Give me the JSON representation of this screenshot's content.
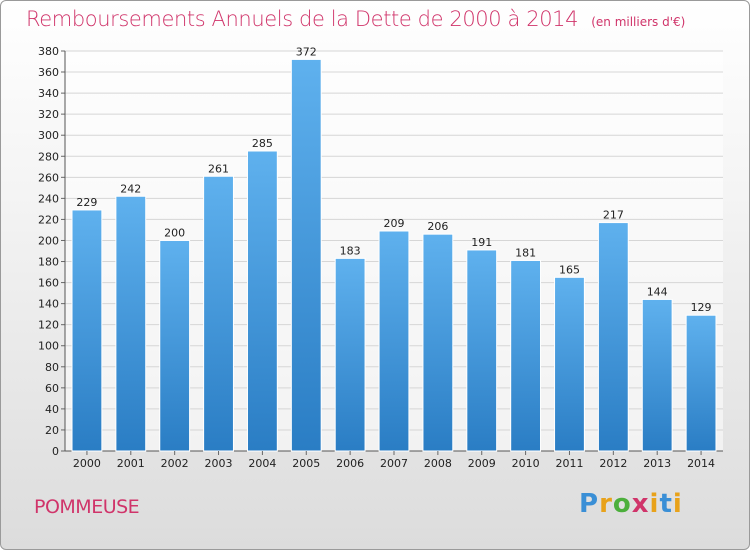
{
  "title": "Remboursements Annuels de la Dette de 2000 à 2014",
  "subtitle": "(en milliers d'€)",
  "commune": "POMMEUSE",
  "logo": {
    "letters": [
      "P",
      "r",
      "o",
      "x",
      "i",
      "t",
      "i"
    ]
  },
  "colors": {
    "bar_top": "#5fb1ee",
    "bar_bottom": "#2a7dc4",
    "title": "#d0346a"
  },
  "chart_data": {
    "type": "bar",
    "title": "Remboursements Annuels de la Dette de 2000 à 2014",
    "subtitle": "(en milliers d'€)",
    "xlabel": "",
    "ylabel": "",
    "categories": [
      "2000",
      "2001",
      "2002",
      "2003",
      "2004",
      "2005",
      "2006",
      "2007",
      "2008",
      "2009",
      "2010",
      "2011",
      "2012",
      "2013",
      "2014"
    ],
    "values": [
      229,
      242,
      200,
      261,
      285,
      372,
      183,
      209,
      206,
      191,
      181,
      165,
      217,
      144,
      129
    ],
    "ylim": [
      0,
      380
    ],
    "ytick_step": 20,
    "grid": true,
    "legend": "none"
  }
}
